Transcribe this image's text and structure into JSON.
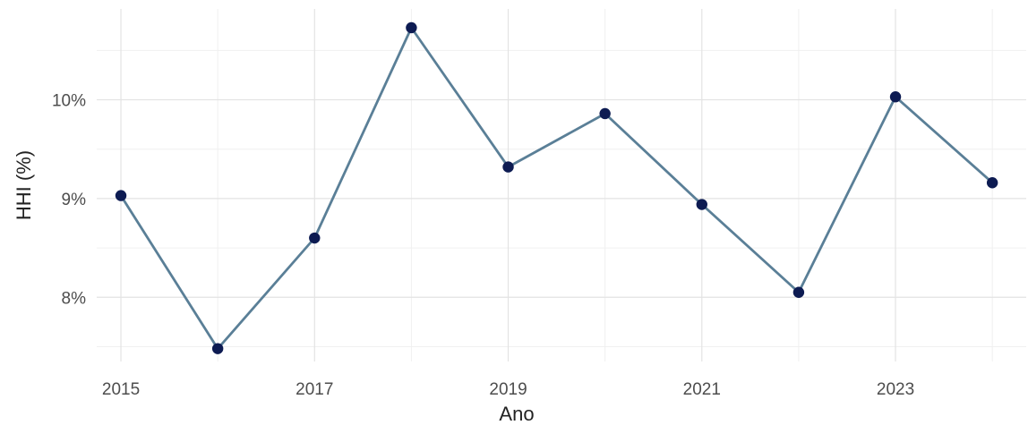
{
  "chart_data": {
    "type": "line",
    "title": "",
    "xlabel": "Ano",
    "ylabel": "HHI (%)",
    "x": [
      2015,
      2016,
      2017,
      2018,
      2019,
      2020,
      2021,
      2022,
      2023,
      2024
    ],
    "series": [
      {
        "values": [
          9.03,
          7.48,
          8.6,
          10.73,
          9.32,
          9.86,
          8.94,
          8.05,
          10.03,
          9.16
        ],
        "color": "#5a7f97",
        "point_color": "#0d1b52"
      }
    ],
    "x_ticks": [
      2015,
      2017,
      2019,
      2021,
      2023
    ],
    "x_tick_labels": [
      "2015",
      "2017",
      "2019",
      "2021",
      "2023"
    ],
    "y_ticks": [
      8,
      9,
      10
    ],
    "y_tick_labels": [
      "8%",
      "9%",
      "10%"
    ],
    "xlim": [
      2014.75,
      2024.35
    ],
    "ylim": [
      7.35,
      10.92
    ],
    "grid": true,
    "legend": "none"
  }
}
